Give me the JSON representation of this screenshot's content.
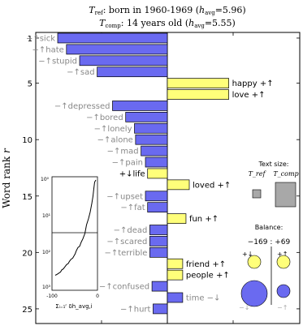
{
  "title_line1": "T_ref: born in 1960-1969 (h_avg=5.96)",
  "title_line1_parts": {
    "sym": "T",
    "sub": "ref",
    "mid": ": born in 1960-1969 (",
    "h": "h",
    "hsub": "avg",
    "end": "=5.96)"
  },
  "title_line2_parts": {
    "sym": "T",
    "sub": "comp",
    "mid": ": 14 years old (",
    "h": "h",
    "hsub": "avg",
    "end": "=5.55)"
  },
  "ylabel": "Word rank r",
  "ylabel_parts": {
    "text": "Word rank ",
    "var": "r"
  },
  "colors": {
    "blue": "#6a6af0",
    "yellow": "#ffff7a",
    "gray_label": "#888888",
    "box_gray": "#a8a8a8"
  },
  "chart_data": {
    "type": "bar",
    "orientation": "horizontal",
    "ylim": [
      0.5,
      26.3
    ],
    "yticks": [
      1,
      5,
      10,
      15,
      20,
      25
    ],
    "bars": [
      {
        "rank": 1,
        "word": "sick",
        "value": -100,
        "color": "blue",
        "label": "−↑sick",
        "side": "left"
      },
      {
        "rank": 2,
        "word": "hate",
        "value": -92,
        "color": "blue",
        "label": "−↑hate",
        "side": "left"
      },
      {
        "rank": 3,
        "word": "stupid",
        "value": -80,
        "color": "blue",
        "label": "−↑stupid",
        "side": "left"
      },
      {
        "rank": 4,
        "word": "sad",
        "value": -64,
        "color": "blue",
        "label": "−↑sad",
        "side": "left"
      },
      {
        "rank": 5,
        "word": "happy",
        "value": 56,
        "color": "yellow",
        "label": "happy +↑",
        "side": "right"
      },
      {
        "rank": 6,
        "word": "love",
        "value": 56,
        "color": "yellow",
        "label": "love +↑",
        "side": "right"
      },
      {
        "rank": 7,
        "word": "depressed",
        "value": -50,
        "color": "blue",
        "label": "−↑depressed",
        "side": "left"
      },
      {
        "rank": 8,
        "word": "bored",
        "value": -38,
        "color": "blue",
        "label": "−↑bored",
        "side": "left"
      },
      {
        "rank": 9,
        "word": "lonely",
        "value": -30,
        "color": "blue",
        "label": "−↑lonely",
        "side": "left"
      },
      {
        "rank": 10,
        "word": "alone",
        "value": -29,
        "color": "blue",
        "label": "−↑alone",
        "side": "left"
      },
      {
        "rank": 11,
        "word": "mad",
        "value": -24,
        "color": "blue",
        "label": "−↑mad",
        "side": "left"
      },
      {
        "rank": 12,
        "word": "pain",
        "value": -20,
        "color": "blue",
        "label": "−↑pain",
        "side": "left"
      },
      {
        "rank": 13,
        "word": "life",
        "value": -18,
        "color": "yellow",
        "label": "+↓life",
        "side": "left"
      },
      {
        "rank": 14,
        "word": "loved",
        "value": 20,
        "color": "yellow",
        "label": "loved +↑",
        "side": "right"
      },
      {
        "rank": 15,
        "word": "upset",
        "value": -20,
        "color": "blue",
        "label": "−↑upset",
        "side": "left"
      },
      {
        "rank": 16,
        "word": "fat",
        "value": -18,
        "color": "blue",
        "label": "−↑fat",
        "side": "left"
      },
      {
        "rank": 17,
        "word": "fun",
        "value": 17,
        "color": "yellow",
        "label": "fun +↑",
        "side": "right"
      },
      {
        "rank": 18,
        "word": "dead",
        "value": -16,
        "color": "blue",
        "label": "−↑dead",
        "side": "left"
      },
      {
        "rank": 19,
        "word": "scared",
        "value": -16,
        "color": "blue",
        "label": "−↑scared",
        "side": "left"
      },
      {
        "rank": 20,
        "word": "terrible",
        "value": -16,
        "color": "blue",
        "label": "−↑terrible",
        "side": "left"
      },
      {
        "rank": 21,
        "word": "friend",
        "value": 14,
        "color": "yellow",
        "label": "friend +↑",
        "side": "right"
      },
      {
        "rank": 22,
        "word": "people",
        "value": 14,
        "color": "yellow",
        "label": "people +↑",
        "side": "right"
      },
      {
        "rank": 23,
        "word": "confused",
        "value": -14,
        "color": "blue",
        "label": "−↑confused",
        "side": "left"
      },
      {
        "rank": 24,
        "word": "time",
        "value": 14,
        "color": "blue",
        "label": "time −↓",
        "side": "right"
      },
      {
        "rank": 25,
        "word": "hurt",
        "value": -13,
        "color": "blue",
        "label": "−↑hurt",
        "side": "left"
      }
    ],
    "label_colors": {
      "sick": "gray",
      "hate": "gray",
      "stupid": "gray",
      "sad": "gray",
      "happy": "black",
      "love": "black",
      "depressed": "gray",
      "bored": "gray",
      "lonely": "gray",
      "alone": "gray",
      "mad": "gray",
      "pain": "gray",
      "life": "black",
      "loved": "black",
      "upset": "gray",
      "fat": "gray",
      "fun": "black",
      "dead": "gray",
      "scared": "gray",
      "terrible": "gray",
      "friend": "black",
      "people": "black",
      "confused": "gray",
      "time": "gray",
      "hurt": "gray"
    },
    "inset_cumulative": {
      "xlim": [
        -100,
        0
      ],
      "xtick_labels": [
        "-100",
        "0"
      ],
      "ylabels": [
        "10⁰",
        "10¹",
        "10²",
        "10³"
      ],
      "xlabel": "Σᵢ₌₁ʳ δh_avg,i"
    },
    "text_size_legend": {
      "title": "Text size:",
      "ref_label": "T_ref",
      "comp_label": "T_comp"
    },
    "balance_legend": {
      "title": "Balance:",
      "values": "−169 : +69",
      "plus_down": "+↓",
      "plus_up": "+↑",
      "minus_down": "−↓",
      "minus_up": "−↑"
    }
  }
}
